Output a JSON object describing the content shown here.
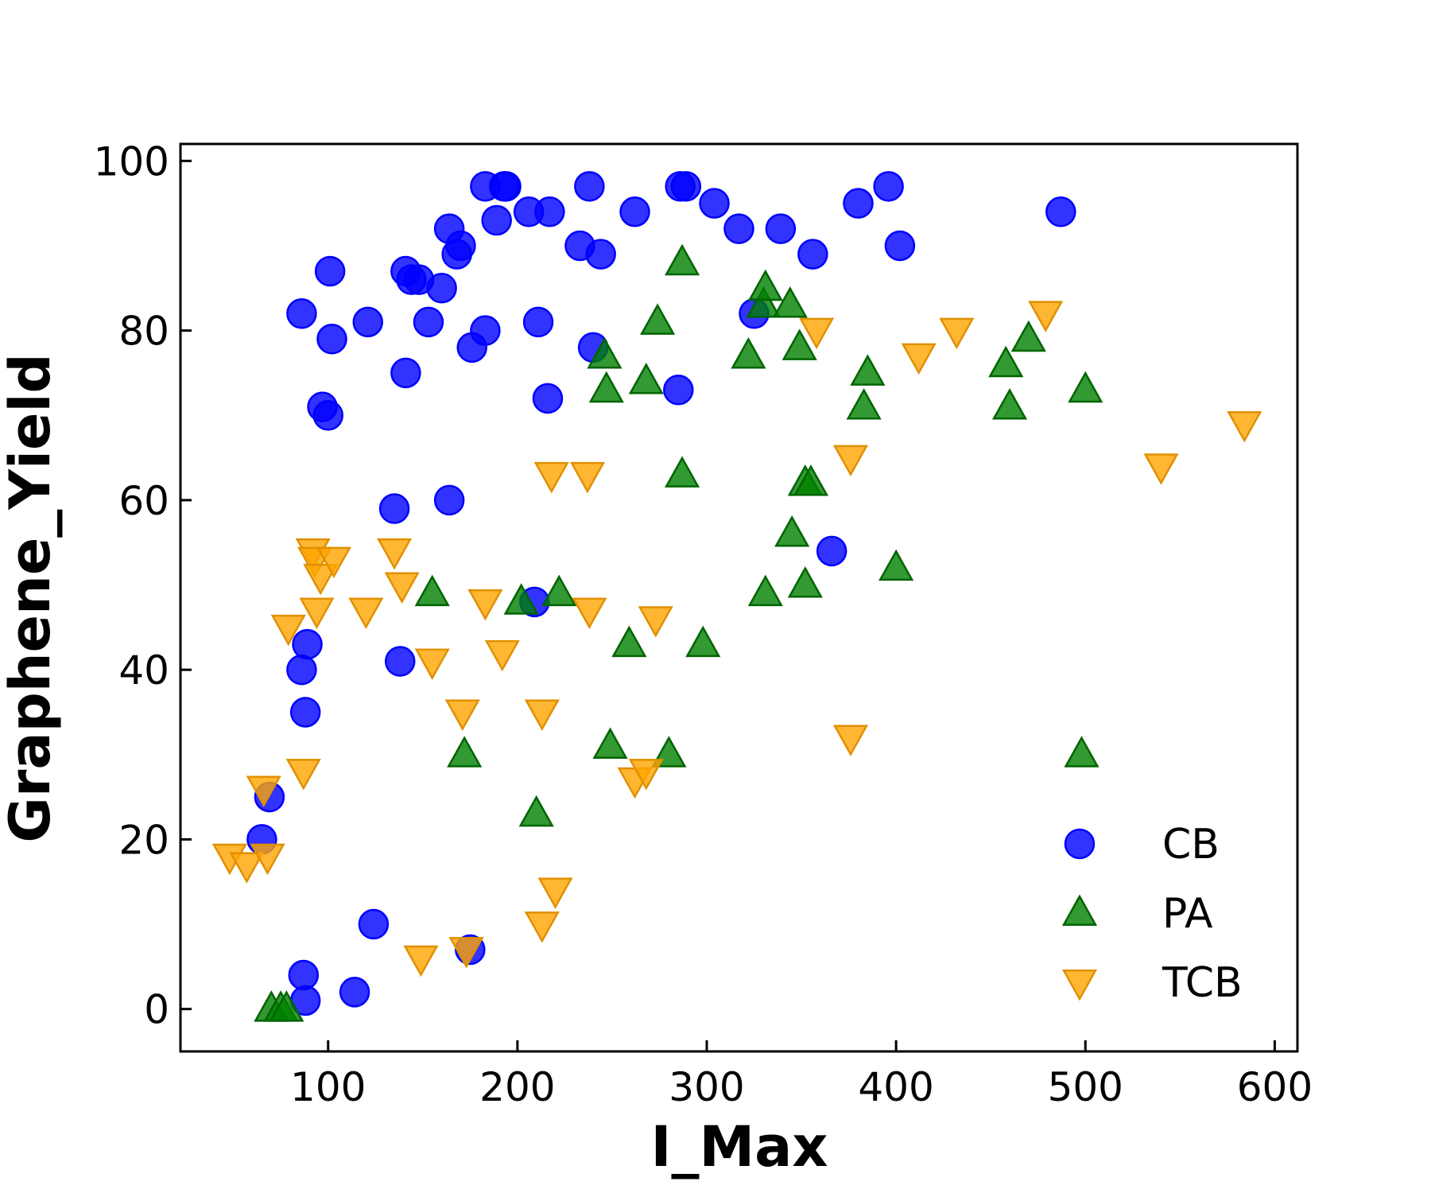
{
  "chart_data": {
    "type": "scatter",
    "title": "",
    "xlabel": "I_Max",
    "ylabel": "Graphene_Yield",
    "xlim": [
      22,
      612
    ],
    "ylim": [
      -5,
      102
    ],
    "xticks": [
      100,
      200,
      300,
      400,
      500,
      600
    ],
    "yticks": [
      0,
      20,
      40,
      60,
      80,
      100
    ],
    "grid": false,
    "legend_position": "bottom-right",
    "series": [
      {
        "name": "CB",
        "marker": "circle",
        "color": "#0000ff",
        "edgecolor": "#0000ff",
        "points": [
          [
            65,
            20
          ],
          [
            69,
            25
          ],
          [
            86,
            40
          ],
          [
            88,
            35
          ],
          [
            89,
            43
          ],
          [
            87,
            4
          ],
          [
            88,
            1
          ],
          [
            114,
            2
          ],
          [
            124,
            10
          ],
          [
            97,
            71
          ],
          [
            100,
            70
          ],
          [
            101,
            87
          ],
          [
            102,
            79
          ],
          [
            86,
            82
          ],
          [
            121,
            81
          ],
          [
            135,
            59
          ],
          [
            138,
            41
          ],
          [
            141,
            87
          ],
          [
            144,
            86
          ],
          [
            148,
            86
          ],
          [
            141,
            75
          ],
          [
            153,
            81
          ],
          [
            160,
            85
          ],
          [
            164,
            60
          ],
          [
            164,
            92
          ],
          [
            168,
            89
          ],
          [
            170,
            90
          ],
          [
            176,
            78
          ],
          [
            183,
            97
          ],
          [
            183,
            80
          ],
          [
            189,
            93
          ],
          [
            193,
            97
          ],
          [
            194,
            97
          ],
          [
            206,
            94
          ],
          [
            211,
            81
          ],
          [
            209,
            48
          ],
          [
            217,
            94
          ],
          [
            216,
            72
          ],
          [
            233,
            90
          ],
          [
            238,
            97
          ],
          [
            240,
            78
          ],
          [
            244,
            89
          ],
          [
            262,
            94
          ],
          [
            286,
            97
          ],
          [
            289,
            97
          ],
          [
            285,
            73
          ],
          [
            304,
            95
          ],
          [
            317,
            92
          ],
          [
            325,
            82
          ],
          [
            339,
            92
          ],
          [
            356,
            89
          ],
          [
            366,
            54
          ],
          [
            380,
            95
          ],
          [
            396,
            97
          ],
          [
            402,
            90
          ],
          [
            487,
            94
          ],
          [
            175,
            7
          ]
        ]
      },
      {
        "name": "PA",
        "marker": "triangle-up",
        "color": "#008000",
        "edgecolor": "#006400",
        "points": [
          [
            70,
            0
          ],
          [
            75,
            0
          ],
          [
            78,
            0
          ],
          [
            155,
            49
          ],
          [
            172,
            30
          ],
          [
            202,
            48
          ],
          [
            210,
            23
          ],
          [
            222,
            49
          ],
          [
            246,
            77
          ],
          [
            247,
            73
          ],
          [
            249,
            31
          ],
          [
            259,
            43
          ],
          [
            268,
            74
          ],
          [
            274,
            81
          ],
          [
            280,
            30
          ],
          [
            287,
            88
          ],
          [
            287,
            63
          ],
          [
            298,
            43
          ],
          [
            322,
            77
          ],
          [
            330,
            83
          ],
          [
            331,
            85
          ],
          [
            331,
            49
          ],
          [
            344,
            83
          ],
          [
            345,
            56
          ],
          [
            349,
            78
          ],
          [
            352,
            50
          ],
          [
            352,
            62
          ],
          [
            355,
            62
          ],
          [
            383,
            71
          ],
          [
            385,
            75
          ],
          [
            400,
            52
          ],
          [
            458,
            76
          ],
          [
            460,
            71
          ],
          [
            470,
            79
          ],
          [
            498,
            30
          ],
          [
            500,
            73
          ]
        ]
      },
      {
        "name": "TCB",
        "marker": "triangle-down",
        "color": "#ffa500",
        "edgecolor": "#e09000",
        "points": [
          [
            48,
            18
          ],
          [
            57,
            17
          ],
          [
            66,
            26
          ],
          [
            68,
            18
          ],
          [
            79,
            45
          ],
          [
            87,
            28
          ],
          [
            92,
            54
          ],
          [
            93,
            53
          ],
          [
            94,
            47
          ],
          [
            96,
            51
          ],
          [
            103,
            53
          ],
          [
            120,
            47
          ],
          [
            135,
            54
          ],
          [
            139,
            50
          ],
          [
            149,
            6
          ],
          [
            155,
            41
          ],
          [
            171,
            35
          ],
          [
            173,
            7
          ],
          [
            183,
            48
          ],
          [
            192,
            42
          ],
          [
            213,
            10
          ],
          [
            213,
            35
          ],
          [
            218,
            63
          ],
          [
            220,
            14
          ],
          [
            237,
            63
          ],
          [
            238,
            47
          ],
          [
            262,
            27
          ],
          [
            268,
            28
          ],
          [
            273,
            46
          ],
          [
            358,
            80
          ],
          [
            376,
            65
          ],
          [
            376,
            32
          ],
          [
            412,
            77
          ],
          [
            432,
            80
          ],
          [
            479,
            82
          ],
          [
            540,
            64
          ],
          [
            584,
            69
          ]
        ]
      }
    ]
  }
}
